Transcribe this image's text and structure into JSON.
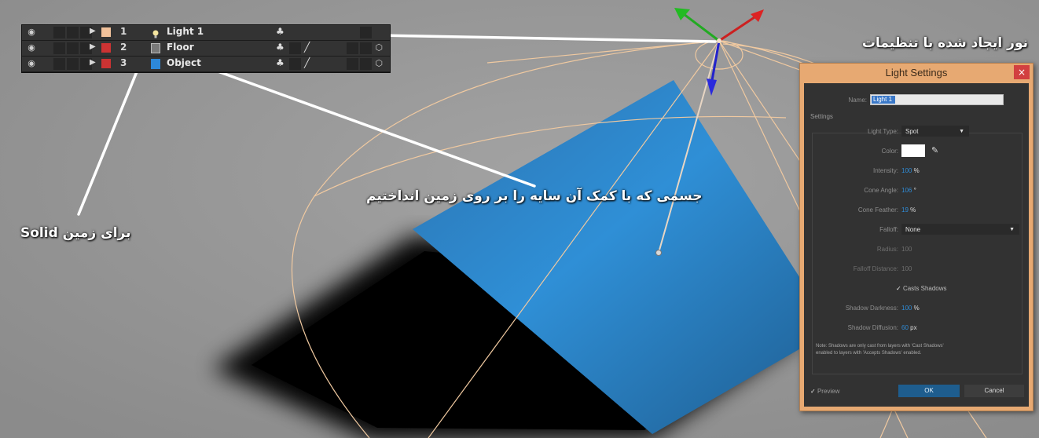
{
  "colors": {
    "background": "#999999",
    "floor_plane": "#2a87cc",
    "shadow": "#000000",
    "wireframe": "#f0c9a0",
    "annotation": "#ffffff",
    "dialog_accent": "#e7a972",
    "value_blue": "#2f8bd6"
  },
  "layers": [
    {
      "index": "1",
      "name": "Light 1",
      "label_color": "#f2c29b",
      "icon": "bulb-icon",
      "swatch": null
    },
    {
      "index": "2",
      "name": "Floor",
      "label_color": "#cc3333",
      "icon": "solid-swatch",
      "swatch": "#7a7a7a"
    },
    {
      "index": "3",
      "name": "Object",
      "label_color": "#cc3333",
      "icon": "solid-swatch",
      "swatch": "#2d88d8"
    }
  ],
  "annotations": {
    "light_created": "نور ایجاد شده با تنظیمات",
    "object_shadow": "جسمی که با کمک آن سایه را بر روی زمین انداختیم",
    "solid_floor": "Solid برای زمین"
  },
  "dialog": {
    "title": "Light Settings",
    "close": "×",
    "name_label": "Name:",
    "name_value": "Light 1",
    "settings_label": "Settings",
    "light_type_label": "Light Type:",
    "light_type_value": "Spot",
    "color_label": "Color:",
    "intensity_label": "Intensity:",
    "intensity_value": "100",
    "intensity_unit": "%",
    "cone_angle_label": "Cone Angle:",
    "cone_angle_value": "106",
    "cone_angle_unit": "°",
    "cone_feather_label": "Cone Feather:",
    "cone_feather_value": "19",
    "cone_feather_unit": "%",
    "falloff_label": "Falloff:",
    "falloff_value": "None",
    "radius_label": "Radius:",
    "radius_value": "100",
    "falloff_distance_label": "Falloff Distance:",
    "falloff_distance_value": "100",
    "casts_shadows_label": "Casts Shadows",
    "casts_shadows_checked": true,
    "shadow_darkness_label": "Shadow Darkness:",
    "shadow_darkness_value": "100",
    "shadow_darkness_unit": "%",
    "shadow_diffusion_label": "Shadow Diffusion:",
    "shadow_diffusion_value": "60",
    "shadow_diffusion_unit": "px",
    "note_line1": "Note: Shadows are only cast from layers with 'Cast Shadows'",
    "note_line2": "enabled to layers with 'Accepts Shadows' enabled.",
    "preview_label": "Preview",
    "preview_checked": true,
    "ok_label": "OK",
    "cancel_label": "Cancel",
    "checkmark": "✓",
    "dropdown_caret": "▼"
  }
}
